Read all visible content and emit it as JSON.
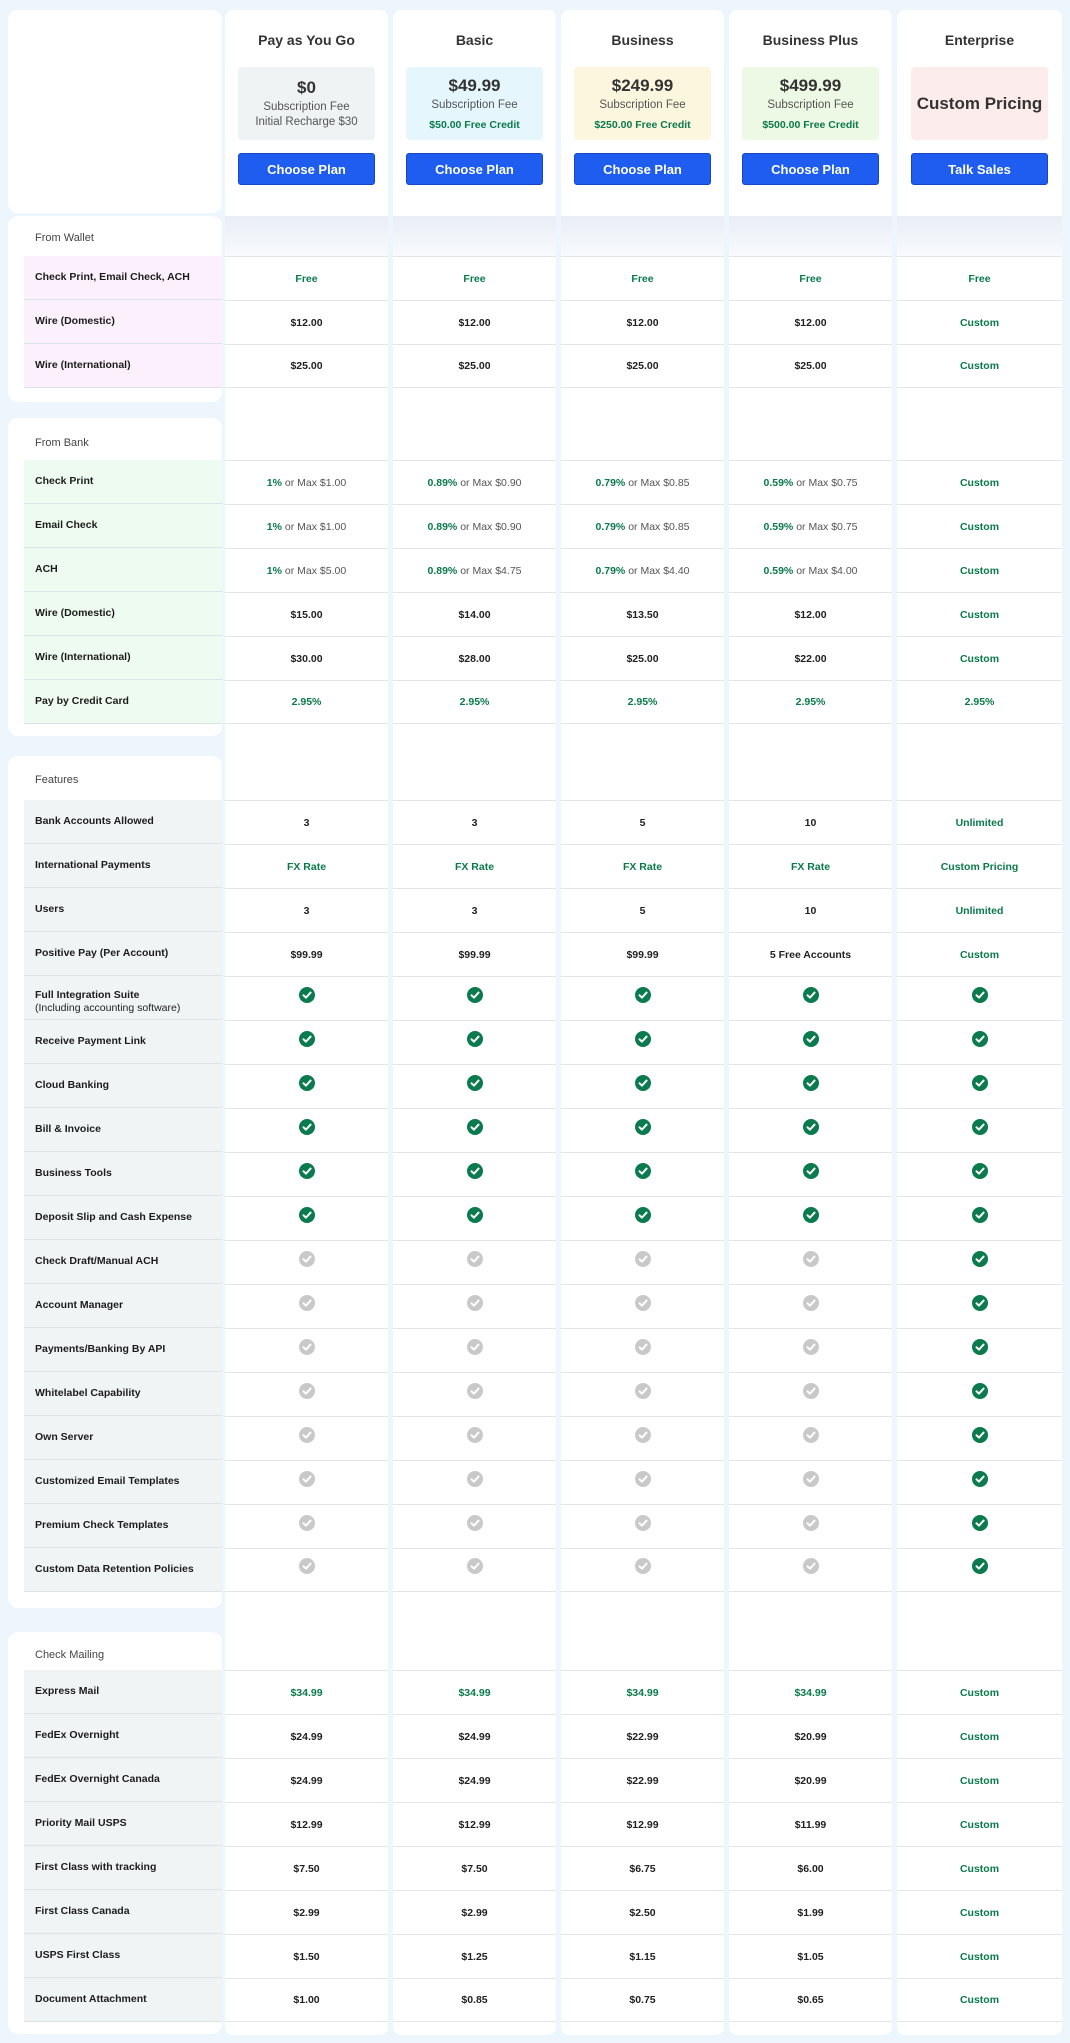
{
  "colors": {
    "accent_button": "#1f5cf0",
    "green_text": "#0a7a4b",
    "check_on": "#0b7a4f",
    "check_off": "#c9c9c9",
    "page_bg": "#eef6fd"
  },
  "plans": [
    {
      "name": "Pay as You Go",
      "price": "$0",
      "subtitle": "Subscription Fee",
      "extra": "Initial Recharge $30",
      "credit": "",
      "button": "Choose Plan",
      "box_color": "#f0f3f4"
    },
    {
      "name": "Basic",
      "price": "$49.99",
      "subtitle": "Subscription Fee",
      "extra": "",
      "credit": "$50.00 Free Credit",
      "button": "Choose Plan",
      "box_color": "#e5f7fd"
    },
    {
      "name": "Business",
      "price": "$249.99",
      "subtitle": "Subscription Fee",
      "extra": "",
      "credit": "$250.00 Free Credit",
      "button": "Choose Plan",
      "box_color": "#fdf6df"
    },
    {
      "name": "Business Plus",
      "price": "$499.99",
      "subtitle": "Subscription Fee",
      "extra": "",
      "credit": "$500.00 Free Credit",
      "button": "Choose Plan",
      "box_color": "#edf9e4"
    },
    {
      "name": "Enterprise",
      "price": "Custom Pricing",
      "subtitle": "",
      "extra": "",
      "credit": "",
      "button": "Talk Sales",
      "box_color": "#fdecec"
    }
  ],
  "sections": [
    {
      "title": "From Wallet",
      "rows": [
        {
          "label": "Check Print, Email Check, ACH",
          "cells": [
            {
              "t": "Free",
              "s": "green"
            },
            {
              "t": "Free",
              "s": "green"
            },
            {
              "t": "Free",
              "s": "green"
            },
            {
              "t": "Free",
              "s": "green"
            },
            {
              "t": "Free",
              "s": "green"
            }
          ]
        },
        {
          "label": "Wire (Domestic)",
          "cells": [
            {
              "t": "$12.00"
            },
            {
              "t": "$12.00"
            },
            {
              "t": "$12.00"
            },
            {
              "t": "$12.00"
            },
            {
              "t": "Custom",
              "s": "green"
            }
          ]
        },
        {
          "label": "Wire (International)",
          "cells": [
            {
              "t": "$25.00"
            },
            {
              "t": "$25.00"
            },
            {
              "t": "$25.00"
            },
            {
              "t": "$25.00"
            },
            {
              "t": "Custom",
              "s": "green"
            }
          ]
        }
      ]
    },
    {
      "title": "From Bank",
      "rows": [
        {
          "label": "Check Print",
          "cells": [
            {
              "pct": "1%",
              "or": " or Max ",
              "max": "$1.00"
            },
            {
              "pct": "0.89%",
              "or": " or Max ",
              "max": "$0.90"
            },
            {
              "pct": "0.79%",
              "or": " or Max ",
              "max": "$0.85"
            },
            {
              "pct": "0.59%",
              "or": " or Max ",
              "max": "$0.75"
            },
            {
              "t": "Custom",
              "s": "green"
            }
          ]
        },
        {
          "label": "Email Check",
          "cells": [
            {
              "pct": "1%",
              "or": " or Max ",
              "max": "$1.00"
            },
            {
              "pct": "0.89%",
              "or": " or Max ",
              "max": "$0.90"
            },
            {
              "pct": "0.79%",
              "or": " or Max ",
              "max": "$0.85"
            },
            {
              "pct": "0.59%",
              "or": " or Max ",
              "max": "$0.75"
            },
            {
              "t": "Custom",
              "s": "green"
            }
          ]
        },
        {
          "label": "ACH",
          "cells": [
            {
              "pct": "1%",
              "or": " or Max ",
              "max": "$5.00"
            },
            {
              "pct": "0.89%",
              "or": " or Max ",
              "max": "$4.75"
            },
            {
              "pct": "0.79%",
              "or": " or Max ",
              "max": "$4.40"
            },
            {
              "pct": "0.59%",
              "or": " or Max ",
              "max": "$4.00"
            },
            {
              "t": "Custom",
              "s": "green"
            }
          ]
        },
        {
          "label": "Wire (Domestic)",
          "cells": [
            {
              "t": "$15.00"
            },
            {
              "t": "$14.00"
            },
            {
              "t": "$13.50"
            },
            {
              "t": "$12.00"
            },
            {
              "t": "Custom",
              "s": "green"
            }
          ]
        },
        {
          "label": "Wire (International)",
          "cells": [
            {
              "t": "$30.00"
            },
            {
              "t": "$28.00"
            },
            {
              "t": "$25.00"
            },
            {
              "t": "$22.00"
            },
            {
              "t": "Custom",
              "s": "green"
            }
          ]
        },
        {
          "label": "Pay by Credit Card",
          "cells": [
            {
              "t": "2.95%",
              "s": "green"
            },
            {
              "t": "2.95%",
              "s": "green"
            },
            {
              "t": "2.95%",
              "s": "green"
            },
            {
              "t": "2.95%",
              "s": "green"
            },
            {
              "t": "2.95%",
              "s": "green"
            }
          ]
        }
      ]
    },
    {
      "title": "Features",
      "rows": [
        {
          "label": "Bank Accounts Allowed",
          "cells": [
            {
              "t": "3"
            },
            {
              "t": "3"
            },
            {
              "t": "5"
            },
            {
              "t": "10"
            },
            {
              "t": "Unlimited",
              "s": "green"
            }
          ]
        },
        {
          "label": "International Payments",
          "cells": [
            {
              "t": "FX Rate",
              "s": "green"
            },
            {
              "t": "FX Rate",
              "s": "green"
            },
            {
              "t": "FX Rate",
              "s": "green"
            },
            {
              "t": "FX Rate",
              "s": "green"
            },
            {
              "t": "Custom Pricing",
              "s": "green"
            }
          ]
        },
        {
          "label": "Users",
          "cells": [
            {
              "t": "3"
            },
            {
              "t": "3"
            },
            {
              "t": "5"
            },
            {
              "t": "10"
            },
            {
              "t": "Unlimited",
              "s": "green"
            }
          ]
        },
        {
          "label": "Positive Pay (Per Account)",
          "cells": [
            {
              "t": "$99.99"
            },
            {
              "t": "$99.99"
            },
            {
              "t": "$99.99"
            },
            {
              "t": "5 Free Accounts"
            },
            {
              "t": "Custom",
              "s": "green"
            }
          ]
        },
        {
          "label": "Full Integration Suite",
          "sublabel": "(Including accounting software)",
          "cells": [
            {
              "check": true
            },
            {
              "check": true
            },
            {
              "check": true
            },
            {
              "check": true
            },
            {
              "check": true
            }
          ]
        },
        {
          "label": "Receive Payment Link",
          "cells": [
            {
              "check": true
            },
            {
              "check": true
            },
            {
              "check": true
            },
            {
              "check": true
            },
            {
              "check": true
            }
          ]
        },
        {
          "label": "Cloud Banking",
          "cells": [
            {
              "check": true
            },
            {
              "check": true
            },
            {
              "check": true
            },
            {
              "check": true
            },
            {
              "check": true
            }
          ]
        },
        {
          "label": "Bill & Invoice",
          "cells": [
            {
              "check": true
            },
            {
              "check": true
            },
            {
              "check": true
            },
            {
              "check": true
            },
            {
              "check": true
            }
          ]
        },
        {
          "label": "Business Tools",
          "cells": [
            {
              "check": true
            },
            {
              "check": true
            },
            {
              "check": true
            },
            {
              "check": true
            },
            {
              "check": true
            }
          ]
        },
        {
          "label": "Deposit Slip and Cash Expense",
          "cells": [
            {
              "check": true
            },
            {
              "check": true
            },
            {
              "check": true
            },
            {
              "check": true
            },
            {
              "check": true
            }
          ]
        },
        {
          "label": "Check Draft/Manual ACH",
          "cells": [
            {
              "check": false
            },
            {
              "check": false
            },
            {
              "check": false
            },
            {
              "check": false
            },
            {
              "check": true
            }
          ]
        },
        {
          "label": "Account Manager",
          "cells": [
            {
              "check": false
            },
            {
              "check": false
            },
            {
              "check": false
            },
            {
              "check": false
            },
            {
              "check": true
            }
          ]
        },
        {
          "label": "Payments/Banking By API",
          "cells": [
            {
              "check": false
            },
            {
              "check": false
            },
            {
              "check": false
            },
            {
              "check": false
            },
            {
              "check": true
            }
          ]
        },
        {
          "label": "Whitelabel Capability",
          "cells": [
            {
              "check": false
            },
            {
              "check": false
            },
            {
              "check": false
            },
            {
              "check": false
            },
            {
              "check": true
            }
          ]
        },
        {
          "label": "Own Server",
          "cells": [
            {
              "check": false
            },
            {
              "check": false
            },
            {
              "check": false
            },
            {
              "check": false
            },
            {
              "check": true
            }
          ]
        },
        {
          "label": "Customized Email Templates",
          "cells": [
            {
              "check": false
            },
            {
              "check": false
            },
            {
              "check": false
            },
            {
              "check": false
            },
            {
              "check": true
            }
          ]
        },
        {
          "label": "Premium Check Templates",
          "cells": [
            {
              "check": false
            },
            {
              "check": false
            },
            {
              "check": false
            },
            {
              "check": false
            },
            {
              "check": true
            }
          ]
        },
        {
          "label": "Custom Data Retention Policies",
          "cells": [
            {
              "check": false
            },
            {
              "check": false
            },
            {
              "check": false
            },
            {
              "check": false
            },
            {
              "check": true
            }
          ]
        }
      ]
    },
    {
      "title": "Check Mailing",
      "rows": [
        {
          "label": "Express Mail",
          "cells": [
            {
              "t": "$34.99",
              "s": "green"
            },
            {
              "t": "$34.99",
              "s": "green"
            },
            {
              "t": "$34.99",
              "s": "green"
            },
            {
              "t": "$34.99",
              "s": "green"
            },
            {
              "t": "Custom",
              "s": "green"
            }
          ]
        },
        {
          "label": "FedEx Overnight",
          "cells": [
            {
              "t": "$24.99"
            },
            {
              "t": "$24.99"
            },
            {
              "t": "$22.99"
            },
            {
              "t": "$20.99"
            },
            {
              "t": "Custom",
              "s": "green"
            }
          ]
        },
        {
          "label": "FedEx Overnight Canada",
          "cells": [
            {
              "t": "$24.99"
            },
            {
              "t": "$24.99"
            },
            {
              "t": "$22.99"
            },
            {
              "t": "$20.99"
            },
            {
              "t": "Custom",
              "s": "green"
            }
          ]
        },
        {
          "label": "Priority Mail USPS",
          "cells": [
            {
              "t": "$12.99"
            },
            {
              "t": "$12.99"
            },
            {
              "t": "$12.99"
            },
            {
              "t": "$11.99"
            },
            {
              "t": "Custom",
              "s": "green"
            }
          ]
        },
        {
          "label": "First Class with tracking",
          "cells": [
            {
              "t": "$7.50"
            },
            {
              "t": "$7.50"
            },
            {
              "t": "$6.75"
            },
            {
              "t": "$6.00"
            },
            {
              "t": "Custom",
              "s": "green"
            }
          ]
        },
        {
          "label": "First Class Canada",
          "cells": [
            {
              "t": "$2.99"
            },
            {
              "t": "$2.99"
            },
            {
              "t": "$2.50"
            },
            {
              "t": "$1.99"
            },
            {
              "t": "Custom",
              "s": "green"
            }
          ]
        },
        {
          "label": "USPS First Class",
          "cells": [
            {
              "t": "$1.50"
            },
            {
              "t": "$1.25"
            },
            {
              "t": "$1.15"
            },
            {
              "t": "$1.05"
            },
            {
              "t": "Custom",
              "s": "green"
            }
          ]
        },
        {
          "label": "Document Attachment",
          "cells": [
            {
              "t": "$1.00"
            },
            {
              "t": "$0.85"
            },
            {
              "t": "$0.75"
            },
            {
              "t": "$0.65"
            },
            {
              "t": "Custom",
              "s": "green"
            }
          ]
        }
      ]
    }
  ]
}
